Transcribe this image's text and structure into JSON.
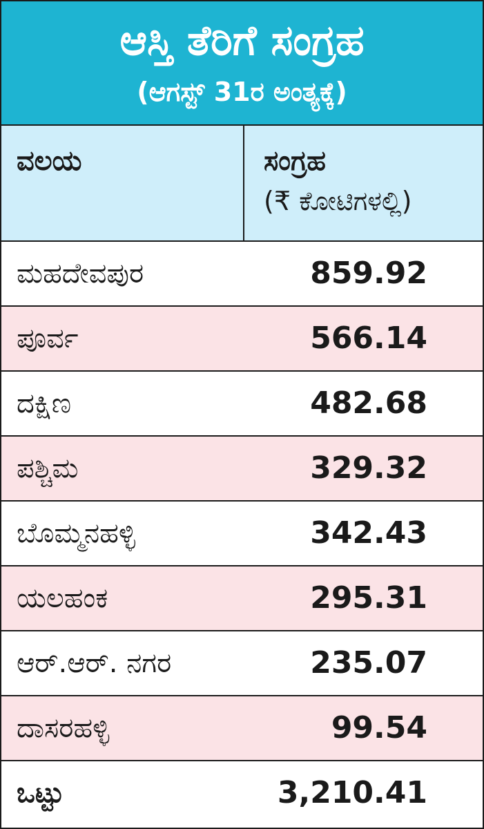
{
  "header": {
    "title": "ಆಸ್ತಿ ತೆರಿಗೆ ಸಂಗ್ರಹ",
    "subtitle": "(ಆಗಸ್ಟ್ 31ರ ಅಂತ್ಯಕ್ಕೆ)"
  },
  "table": {
    "zone_header": "ವಲಯ",
    "collection_header": "ಸಂಗ್ರಹ",
    "unit_header": "(₹ ಕೋಟಿಗಳಲ್ಲಿ)",
    "rows": [
      {
        "zone": "ಮಹದೇವಪುರ",
        "value": "859.92"
      },
      {
        "zone": "ಪೂರ್ವ",
        "value": "566.14"
      },
      {
        "zone": "ದಕ್ಷಿಣ",
        "value": "482.68"
      },
      {
        "zone": "ಪಶ್ಚಿಮ",
        "value": "329.32"
      },
      {
        "zone": "ಬೊಮ್ಮನಹಳ್ಳಿ",
        "value": "342.43"
      },
      {
        "zone": "ಯಲಹಂಕ",
        "value": "295.31"
      },
      {
        "zone": "ಆರ್.ಆರ್. ನಗರ",
        "value": "235.07"
      },
      {
        "zone": "ದಾಸರಹಳ್ಳಿ",
        "value": "99.54"
      }
    ],
    "total": {
      "zone": "ಒಟ್ಟು",
      "value": "3,210.41"
    }
  },
  "colors": {
    "header_bg": "#1eb4d2",
    "column_header_bg": "#cfeefa",
    "alt_row_bg": "#fbe3e6",
    "border": "#1a1a1a"
  }
}
